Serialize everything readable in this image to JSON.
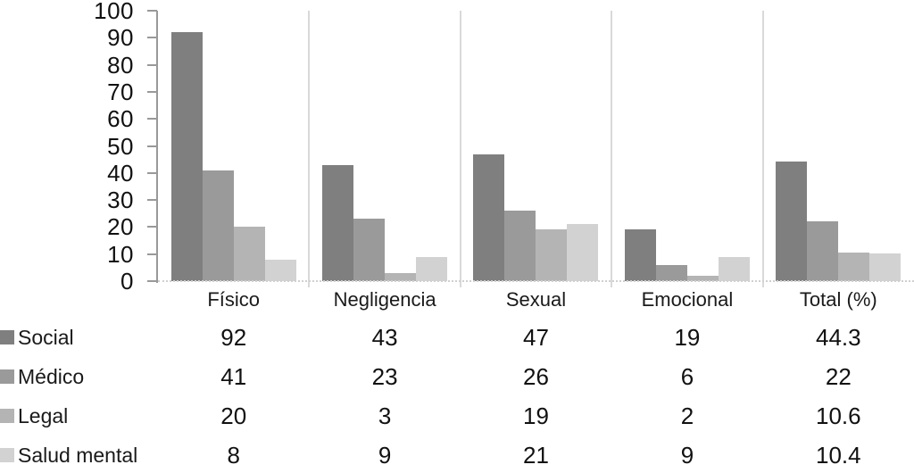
{
  "chart_data": {
    "type": "bar",
    "title": "",
    "xlabel": "",
    "ylabel": "",
    "ylim": [
      0,
      100
    ],
    "yticks": [
      100,
      90,
      80,
      70,
      60,
      50,
      40,
      30,
      20,
      10,
      0
    ],
    "grid": false,
    "legend_position": "left-of-table-rows",
    "categories": [
      "Físico",
      "Negligencia",
      "Sexual",
      "Emocional",
      "Total (%)"
    ],
    "series": [
      {
        "name": "Social",
        "color": "#7f7f7f",
        "values": [
          92,
          43,
          47,
          19,
          44.3
        ]
      },
      {
        "name": "Médico",
        "color": "#9a9a9a",
        "values": [
          41,
          23,
          26,
          6,
          22
        ]
      },
      {
        "name": "Legal",
        "color": "#b4b4b4",
        "values": [
          20,
          3,
          19,
          2,
          10.6
        ]
      },
      {
        "name": "Salud mental",
        "color": "#d2d2d2",
        "values": [
          8,
          9,
          21,
          9,
          10.4
        ]
      }
    ],
    "display_values": [
      [
        "92",
        "43",
        "47",
        "19",
        "44.3"
      ],
      [
        "41",
        "23",
        "26",
        "6",
        "22"
      ],
      [
        "20",
        "3",
        "19",
        "2",
        "10.6"
      ],
      [
        "8",
        "9",
        "21",
        "9",
        "10.4"
      ]
    ],
    "colors": {
      "axis": "#999999",
      "group_separator": "#d9d9d9",
      "baseline_dotted": "#d0d0d0",
      "tick_text": "#111111"
    }
  }
}
